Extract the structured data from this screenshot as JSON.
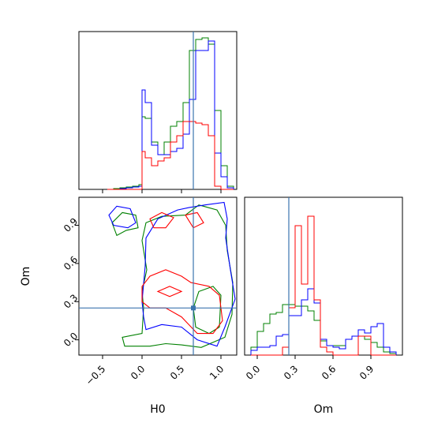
{
  "chart_data": {
    "type": "corner",
    "parameters": [
      "H0",
      "Om"
    ],
    "truth": {
      "H0": 0.65,
      "Om": 0.25
    },
    "truth_color": "#3b75af",
    "series_colors": {
      "green": "#008000",
      "blue": "#0000ff",
      "red": "#ff0000"
    },
    "panels": [
      {
        "name": "H0-marginal",
        "type": "histogram",
        "xlim": [
          -0.8,
          1.2
        ],
        "ylim": [
          0,
          1.0
        ],
        "bin_edges": [
          -0.44,
          -0.36,
          -0.28,
          -0.2,
          -0.12,
          -0.04,
          0.0,
          0.04,
          0.12,
          0.2,
          0.28,
          0.36,
          0.44,
          0.52,
          0.6,
          0.68,
          0.76,
          0.84,
          0.92,
          1.0,
          1.08,
          1.16
        ],
        "series": [
          {
            "color": "green",
            "values": [
              0.0,
              0.005,
              0.01,
              0.015,
              0.02,
              0.03,
              0.46,
              0.45,
              0.3,
              0.22,
              0.3,
              0.4,
              0.43,
              0.55,
              0.88,
              0.95,
              0.96,
              0.92,
              0.5,
              0.15,
              0.02
            ]
          },
          {
            "color": "blue",
            "values": [
              0.0,
              0.0,
              0.005,
              0.01,
              0.015,
              0.02,
              0.63,
              0.55,
              0.28,
              0.22,
              0.22,
              0.24,
              0.26,
              0.35,
              0.57,
              0.88,
              0.88,
              0.94,
              0.23,
              0.08,
              0.01
            ]
          },
          {
            "color": "red",
            "values": [
              0.0,
              0.0,
              0.0,
              0.0,
              0.0,
              0.0,
              0.24,
              0.2,
              0.15,
              0.18,
              0.2,
              0.3,
              0.34,
              0.43,
              0.43,
              0.42,
              0.41,
              0.34,
              0.02,
              0.0,
              0.0
            ]
          }
        ]
      },
      {
        "name": "H0-Om-joint",
        "type": "contour",
        "xlim": [
          -0.8,
          1.2
        ],
        "ylim": [
          -0.12,
          1.12
        ],
        "xlabel": "H0",
        "ylabel": "Om",
        "x_ticks": [
          -0.5,
          0.0,
          0.5,
          1.0
        ],
        "x_tick_labels": [
          "−0.5",
          "0.0",
          "0.5",
          "1.0"
        ],
        "y_ticks": [
          0.0,
          0.3,
          0.6,
          0.9
        ],
        "y_tick_labels": [
          "0.0",
          "0.3",
          "0.6",
          "0.9"
        ],
        "contours": [
          {
            "color": "green",
            "points": [
              [
                0.0,
                0.38
              ],
              [
                0.06,
                0.55
              ],
              [
                0.0,
                0.78
              ],
              [
                0.05,
                0.92
              ],
              [
                0.25,
                0.97
              ],
              [
                0.55,
                0.98
              ],
              [
                0.72,
                1.06
              ],
              [
                0.95,
                1.02
              ],
              [
                1.06,
                0.9
              ],
              [
                1.08,
                0.7
              ],
              [
                1.15,
                0.45
              ],
              [
                1.14,
                0.2
              ],
              [
                1.05,
                0.02
              ],
              [
                0.75,
                -0.06
              ],
              [
                0.5,
                -0.04
              ],
              [
                0.3,
                -0.03
              ],
              [
                0.1,
                -0.05
              ],
              [
                -0.22,
                -0.05
              ],
              [
                -0.25,
                0.02
              ],
              [
                0.0,
                0.05
              ],
              [
                0.02,
                0.25
              ]
            ]
          },
          {
            "color": "green",
            "points": [
              [
                0.72,
                0.38
              ],
              [
                0.9,
                0.42
              ],
              [
                1.0,
                0.35
              ],
              [
                0.98,
                0.1
              ],
              [
                0.85,
                0.05
              ],
              [
                0.68,
                0.1
              ],
              [
                0.65,
                0.25
              ]
            ]
          },
          {
            "color": "green",
            "points": [
              [
                -0.38,
                0.92
              ],
              [
                -0.25,
                1.0
              ],
              [
                -0.08,
                0.98
              ],
              [
                -0.05,
                0.88
              ],
              [
                -0.2,
                0.86
              ],
              [
                -0.32,
                0.82
              ]
            ]
          },
          {
            "color": "blue",
            "points": [
              [
                0.0,
                0.3
              ],
              [
                0.04,
                0.58
              ],
              [
                0.05,
                0.8
              ],
              [
                0.2,
                0.95
              ],
              [
                0.45,
                1.02
              ],
              [
                0.6,
                1.04
              ],
              [
                0.8,
                1.06
              ],
              [
                1.04,
                1.08
              ],
              [
                1.08,
                0.95
              ],
              [
                1.06,
                0.8
              ],
              [
                1.12,
                0.55
              ],
              [
                1.18,
                0.32
              ],
              [
                1.05,
                0.1
              ],
              [
                0.95,
                -0.05
              ],
              [
                0.7,
                0.0
              ],
              [
                0.5,
                0.1
              ],
              [
                0.25,
                0.12
              ],
              [
                0.05,
                0.08
              ],
              [
                0.02,
                0.18
              ]
            ]
          },
          {
            "color": "blue",
            "points": [
              [
                -0.42,
                0.98
              ],
              [
                -0.32,
                1.05
              ],
              [
                -0.15,
                1.03
              ],
              [
                -0.08,
                0.92
              ],
              [
                -0.18,
                0.88
              ],
              [
                -0.36,
                0.9
              ]
            ]
          },
          {
            "color": "red",
            "points": [
              [
                0.0,
                0.42
              ],
              [
                0.1,
                0.5
              ],
              [
                0.3,
                0.55
              ],
              [
                0.5,
                0.5
              ],
              [
                0.62,
                0.45
              ],
              [
                0.85,
                0.42
              ],
              [
                0.98,
                0.35
              ],
              [
                1.02,
                0.15
              ],
              [
                0.9,
                0.05
              ],
              [
                0.7,
                0.05
              ],
              [
                0.5,
                0.18
              ],
              [
                0.3,
                0.25
              ],
              [
                0.1,
                0.25
              ],
              [
                0.0,
                0.3
              ]
            ]
          },
          {
            "color": "red",
            "points": [
              [
                0.1,
                0.95
              ],
              [
                0.25,
                1.0
              ],
              [
                0.4,
                0.96
              ],
              [
                0.3,
                0.88
              ],
              [
                0.15,
                0.88
              ]
            ]
          },
          {
            "color": "red",
            "points": [
              [
                0.55,
                0.98
              ],
              [
                0.7,
                1.0
              ],
              [
                0.78,
                0.92
              ],
              [
                0.65,
                0.88
              ]
            ]
          },
          {
            "color": "red",
            "points": [
              [
                0.2,
                0.38
              ],
              [
                0.35,
                0.42
              ],
              [
                0.5,
                0.38
              ],
              [
                0.35,
                0.34
              ]
            ]
          }
        ]
      },
      {
        "name": "Om-marginal",
        "type": "histogram",
        "xlim": [
          -0.1,
          1.15
        ],
        "ylim": [
          0,
          1.0
        ],
        "xlabel": "Om",
        "x_ticks": [
          0.0,
          0.3,
          0.6,
          0.9
        ],
        "x_tick_labels": [
          "0.0",
          "0.3",
          "0.6",
          "0.9"
        ],
        "bin_edges": [
          -0.05,
          0.0,
          0.05,
          0.1,
          0.15,
          0.2,
          0.25,
          0.3,
          0.35,
          0.4,
          0.45,
          0.5,
          0.55,
          0.6,
          0.65,
          0.7,
          0.75,
          0.8,
          0.85,
          0.9,
          0.95,
          1.0,
          1.05,
          1.1
        ],
        "series": [
          {
            "color": "green",
            "values": [
              0.05,
              0.15,
              0.2,
              0.26,
              0.27,
              0.32,
              0.32,
              0.31,
              0.31,
              0.28,
              0.22,
              0.09,
              0.06,
              0.06,
              0.06,
              0.1,
              0.12,
              0.12,
              0.1,
              0.08,
              0.05,
              0.02,
              0.01
            ]
          },
          {
            "color": "blue",
            "values": [
              0.03,
              0.05,
              0.05,
              0.06,
              0.12,
              0.13,
              0.25,
              0.25,
              0.35,
              0.42,
              0.33,
              0.1,
              0.06,
              0.05,
              0.04,
              0.1,
              0.12,
              0.16,
              0.14,
              0.18,
              0.2,
              0.05,
              0.02
            ]
          },
          {
            "color": "red",
            "values": [
              0.0,
              0.0,
              0.0,
              0.0,
              0.0,
              0.05,
              0.3,
              0.82,
              0.45,
              0.88,
              0.35,
              0.05,
              0.02,
              0.0,
              0.0,
              0.0,
              0.0,
              0.12,
              0.12,
              0.0,
              0.0,
              0.0,
              0.0
            ]
          }
        ]
      }
    ]
  }
}
